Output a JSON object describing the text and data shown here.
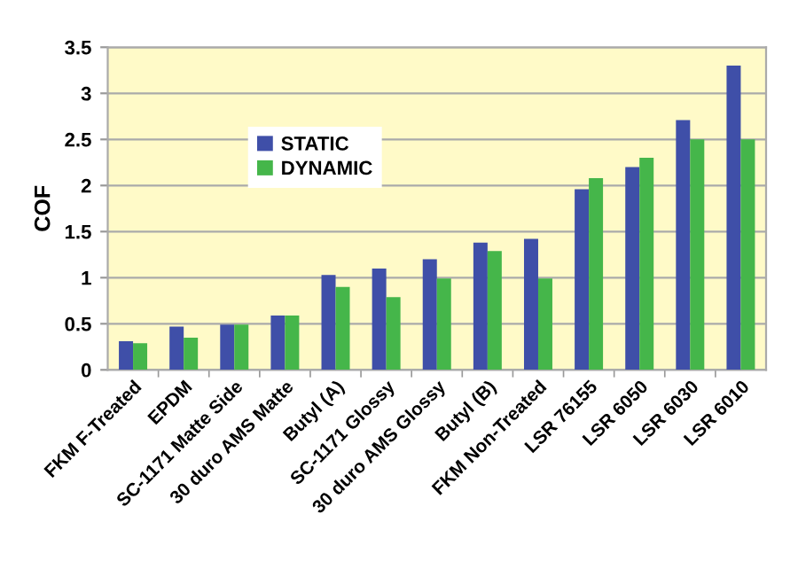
{
  "chart_data": {
    "type": "bar",
    "ylabel": "COF",
    "categories": [
      "FKM F-Treated",
      "EPDM",
      "SC-1171 Matte Side",
      "30 duro AMS Matte",
      "Butyl (A)",
      "SC-1171 Glossy",
      "30 duro AMS Glossy",
      "Butyl (B)",
      "FKM Non-Treated",
      "LSR 76155",
      "LSR 6050",
      "LSR 6030",
      "LSR 6010"
    ],
    "series": [
      {
        "name": "STATIC",
        "color": "#3f4fa8",
        "values": [
          0.31,
          0.47,
          0.49,
          0.59,
          1.03,
          1.1,
          1.2,
          1.38,
          1.42,
          1.96,
          2.2,
          2.71,
          3.3
        ]
      },
      {
        "name": "DYNAMIC",
        "color": "#45b64a",
        "values": [
          0.29,
          0.35,
          0.49,
          0.59,
          0.9,
          0.79,
          0.99,
          1.29,
          0.99,
          2.08,
          2.3,
          2.5,
          2.5
        ]
      }
    ],
    "ylim": [
      0,
      3.5
    ],
    "yticks": [
      0,
      0.5,
      1,
      1.5,
      2,
      2.5,
      3,
      3.5
    ],
    "grid": "y",
    "legend": "top left"
  }
}
